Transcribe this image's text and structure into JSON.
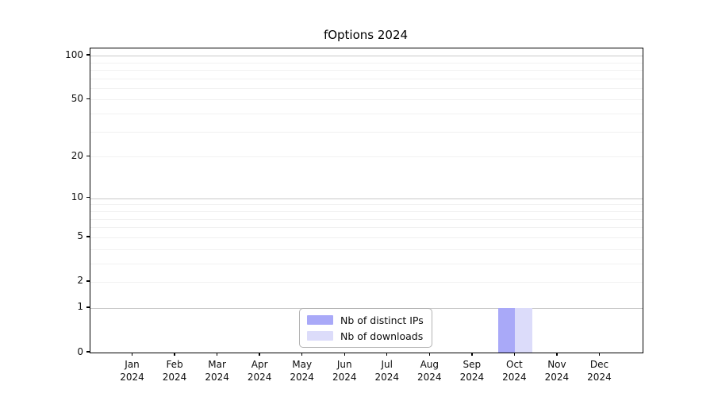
{
  "chart_data": {
    "type": "bar",
    "title": "fOptions 2024",
    "categories": [
      "Jan 2024",
      "Feb 2024",
      "Mar 2024",
      "Apr 2024",
      "May 2024",
      "Jun 2024",
      "Jul 2024",
      "Aug 2024",
      "Sep 2024",
      "Oct 2024",
      "Nov 2024",
      "Dec 2024"
    ],
    "series": [
      {
        "name": "Nb of distinct IPs",
        "color": "#a9a9f8",
        "values": [
          0,
          0,
          0,
          0,
          0,
          0,
          0,
          0,
          0,
          1,
          0,
          0
        ]
      },
      {
        "name": "Nb of downloads",
        "color": "#dcdcfa",
        "values": [
          0,
          0,
          0,
          0,
          0,
          0,
          0,
          0,
          0,
          1,
          0,
          0
        ]
      }
    ],
    "xlabel": "",
    "ylabel": "",
    "yscale": "log1p",
    "ylim": [
      0,
      112
    ],
    "y_tick_values": [
      0,
      1,
      2,
      5,
      10,
      20,
      50,
      100
    ],
    "y_major_grid_values": [
      1,
      10,
      100
    ],
    "y_minor_grid_values": [
      2,
      3,
      4,
      5,
      6,
      7,
      8,
      9,
      20,
      30,
      40,
      50,
      60,
      70,
      80,
      90
    ],
    "grid": "horizontal",
    "legend_position": "lower-center",
    "colors": {
      "major_grid": "#c9c9c9",
      "minor_grid": "#f1f1f1",
      "axis": "#000000",
      "text": "#0d0d0d"
    }
  }
}
